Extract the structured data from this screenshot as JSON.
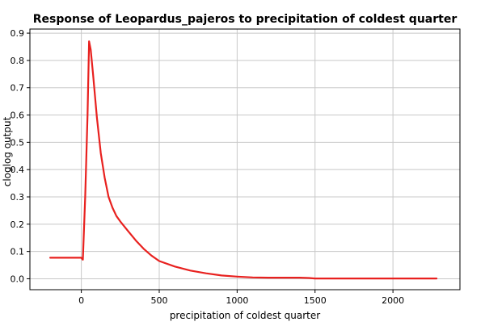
{
  "chart_data": {
    "type": "line",
    "title": "Response of Leopardus_pajeros to precipitation of coldest quarter",
    "xlabel": "precipitation of coldest quarter",
    "ylabel": "cloglog output",
    "xlim": [
      -330,
      2430
    ],
    "ylim": [
      -0.04,
      0.915
    ],
    "xticks": [
      0,
      500,
      1000,
      1500,
      2000
    ],
    "yticks": [
      0.0,
      0.1,
      0.2,
      0.3,
      0.4,
      0.5,
      0.6,
      0.7,
      0.8,
      0.9
    ],
    "grid": true,
    "legend": "none",
    "series": [
      {
        "color": "#e8211f",
        "x": [
          -200,
          -50,
          0,
          10,
          25,
          40,
          50,
          60,
          75,
          100,
          125,
          150,
          175,
          200,
          225,
          250,
          300,
          350,
          400,
          450,
          500,
          600,
          700,
          800,
          900,
          1000,
          1100,
          1200,
          1300,
          1400,
          1460,
          1500,
          1700,
          2000,
          2280
        ],
        "y": [
          0.077,
          0.077,
          0.077,
          0.07,
          0.3,
          0.6,
          0.87,
          0.84,
          0.75,
          0.59,
          0.46,
          0.37,
          0.3,
          0.26,
          0.23,
          0.21,
          0.175,
          0.14,
          0.11,
          0.085,
          0.065,
          0.045,
          0.03,
          0.02,
          0.012,
          0.008,
          0.005,
          0.004,
          0.004,
          0.004,
          0.003,
          0.001,
          0.001,
          0.001,
          0.001
        ]
      }
    ]
  }
}
